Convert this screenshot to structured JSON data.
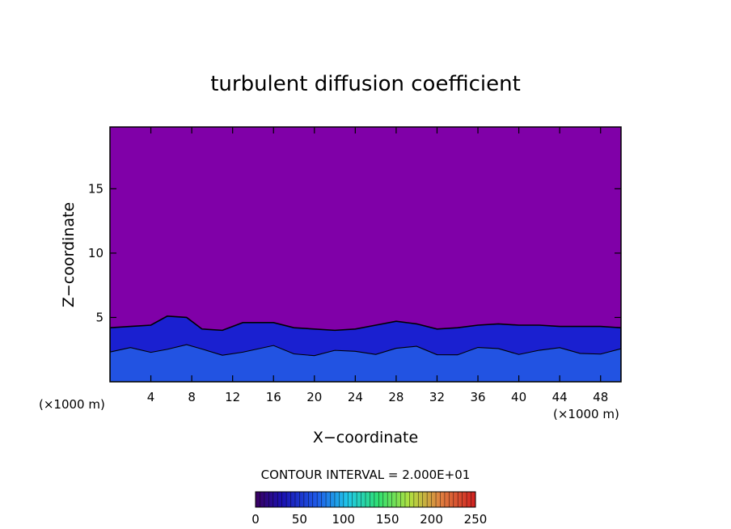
{
  "chart_data": {
    "type": "heatmap",
    "title": "turbulent diffusion coefficient",
    "xlabel": "X−coordinate",
    "ylabel": "Z−coordinate",
    "x_unit": "(×1000 m)",
    "y_unit": "(×1000 m)",
    "xlim": [
      0,
      50
    ],
    "ylim": [
      0,
      19.8
    ],
    "x_ticks": [
      4,
      8,
      12,
      16,
      20,
      24,
      28,
      32,
      36,
      40,
      44,
      48
    ],
    "y_ticks": [
      5,
      10,
      15
    ],
    "contour_interval_label": "CONTOUR INTERVAL = 2.000E+01",
    "colorbar": {
      "min": 0,
      "max": 250,
      "ticks": [
        0,
        50,
        100,
        150,
        200,
        250
      ]
    },
    "colors": {
      "background_field": "#8000a8",
      "low": "#1a20d0",
      "mid": "#2a7ef0",
      "high": "#20d8e0"
    },
    "turbulent_layer_top_km": [
      {
        "x": 0,
        "z": 4.2
      },
      {
        "x": 2,
        "z": 4.3
      },
      {
        "x": 4,
        "z": 4.4
      },
      {
        "x": 5.6,
        "z": 5.1
      },
      {
        "x": 7.5,
        "z": 5.0
      },
      {
        "x": 9,
        "z": 4.1
      },
      {
        "x": 11,
        "z": 4.0
      },
      {
        "x": 13,
        "z": 4.6
      },
      {
        "x": 16,
        "z": 4.6
      },
      {
        "x": 18,
        "z": 4.2
      },
      {
        "x": 20,
        "z": 4.1
      },
      {
        "x": 22,
        "z": 4.0
      },
      {
        "x": 24,
        "z": 4.1
      },
      {
        "x": 26,
        "z": 4.4
      },
      {
        "x": 28,
        "z": 4.7
      },
      {
        "x": 30,
        "z": 4.5
      },
      {
        "x": 32,
        "z": 4.1
      },
      {
        "x": 34,
        "z": 4.2
      },
      {
        "x": 36,
        "z": 4.4
      },
      {
        "x": 38,
        "z": 4.5
      },
      {
        "x": 40,
        "z": 4.4
      },
      {
        "x": 42,
        "z": 4.4
      },
      {
        "x": 44,
        "z": 4.3
      },
      {
        "x": 46,
        "z": 4.3
      },
      {
        "x": 48,
        "z": 4.3
      },
      {
        "x": 50,
        "z": 4.2
      }
    ]
  }
}
